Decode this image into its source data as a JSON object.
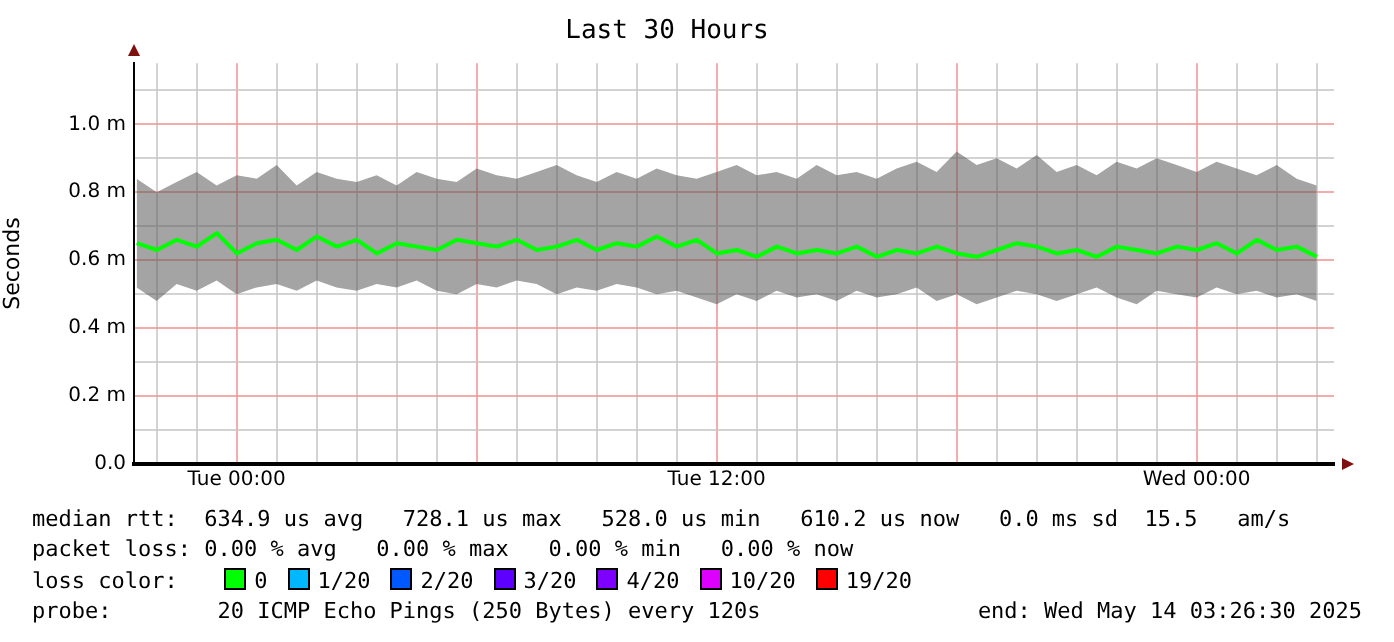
{
  "chart_data": {
    "type": "line",
    "title": "Last 30 Hours",
    "ylabel": "Seconds",
    "legend_title": "loss color:",
    "legend": "bottom",
    "grid": true,
    "marker": "none",
    "line_style": "solid",
    "xlim": [
      "2025-05-12T21:26",
      "2025-05-14T03:26"
    ],
    "xticks": [
      {
        "value": "2025-05-12T22:00",
        "label": null
      },
      {
        "value": "2025-05-12T23:00",
        "label": null
      },
      {
        "value": "2025-05-13T00:00",
        "label": "Tue 00:00"
      },
      {
        "value": "2025-05-13T01:00",
        "label": null
      },
      {
        "value": "2025-05-13T02:00",
        "label": null
      },
      {
        "value": "2025-05-13T03:00",
        "label": null
      },
      {
        "value": "2025-05-13T04:00",
        "label": null
      },
      {
        "value": "2025-05-13T05:00",
        "label": null
      },
      {
        "value": "2025-05-13T06:00",
        "label": null
      },
      {
        "value": "2025-05-13T07:00",
        "label": null
      },
      {
        "value": "2025-05-13T08:00",
        "label": null
      },
      {
        "value": "2025-05-13T09:00",
        "label": null
      },
      {
        "value": "2025-05-13T10:00",
        "label": null
      },
      {
        "value": "2025-05-13T11:00",
        "label": null
      },
      {
        "value": "2025-05-13T12:00",
        "label": "Tue 12:00"
      },
      {
        "value": "2025-05-13T13:00",
        "label": null
      },
      {
        "value": "2025-05-13T14:00",
        "label": null
      },
      {
        "value": "2025-05-13T15:00",
        "label": null
      },
      {
        "value": "2025-05-13T16:00",
        "label": null
      },
      {
        "value": "2025-05-13T17:00",
        "label": null
      },
      {
        "value": "2025-05-13T18:00",
        "label": null
      },
      {
        "value": "2025-05-13T19:00",
        "label": null
      },
      {
        "value": "2025-05-13T20:00",
        "label": null
      },
      {
        "value": "2025-05-13T21:00",
        "label": null
      },
      {
        "value": "2025-05-13T22:00",
        "label": null
      },
      {
        "value": "2025-05-13T23:00",
        "label": null
      },
      {
        "value": "2025-05-14T00:00",
        "label": "Wed 00:00"
      },
      {
        "value": "2025-05-14T01:00",
        "label": null
      },
      {
        "value": "2025-05-14T02:00",
        "label": null
      },
      {
        "value": "2025-05-14T03:00",
        "label": null
      }
    ],
    "ylim": [
      0,
      1.18
    ],
    "yticks": [
      {
        "value": 0,
        "label": "0.0"
      },
      {
        "value": 0.1,
        "label": null
      },
      {
        "value": 0.2,
        "label": "0.2 m"
      },
      {
        "value": 0.3,
        "label": null
      },
      {
        "value": 0.4,
        "label": "0.4 m"
      },
      {
        "value": 0.5,
        "label": null
      },
      {
        "value": 0.6,
        "label": "0.6 m"
      },
      {
        "value": 0.7,
        "label": null
      },
      {
        "value": 0.8,
        "label": "0.8 m"
      },
      {
        "value": 0.9,
        "label": null
      },
      {
        "value": 1.0,
        "label": "1.0 m"
      },
      {
        "value": 1.1,
        "label": null
      }
    ],
    "x": [
      "2025-05-12T21:30",
      "2025-05-12T22:00",
      "2025-05-12T22:30",
      "2025-05-12T23:00",
      "2025-05-12T23:30",
      "2025-05-13T00:00",
      "2025-05-13T00:30",
      "2025-05-13T01:00",
      "2025-05-13T01:30",
      "2025-05-13T02:00",
      "2025-05-13T02:30",
      "2025-05-13T03:00",
      "2025-05-13T03:30",
      "2025-05-13T04:00",
      "2025-05-13T04:30",
      "2025-05-13T05:00",
      "2025-05-13T05:30",
      "2025-05-13T06:00",
      "2025-05-13T06:30",
      "2025-05-13T07:00",
      "2025-05-13T07:30",
      "2025-05-13T08:00",
      "2025-05-13T08:30",
      "2025-05-13T09:00",
      "2025-05-13T09:30",
      "2025-05-13T10:00",
      "2025-05-13T10:30",
      "2025-05-13T11:00",
      "2025-05-13T11:30",
      "2025-05-13T12:00",
      "2025-05-13T12:30",
      "2025-05-13T13:00",
      "2025-05-13T13:30",
      "2025-05-13T14:00",
      "2025-05-13T14:30",
      "2025-05-13T15:00",
      "2025-05-13T15:30",
      "2025-05-13T16:00",
      "2025-05-13T16:30",
      "2025-05-13T17:00",
      "2025-05-13T17:30",
      "2025-05-13T18:00",
      "2025-05-13T18:30",
      "2025-05-13T19:00",
      "2025-05-13T19:30",
      "2025-05-13T20:00",
      "2025-05-13T20:30",
      "2025-05-13T21:00",
      "2025-05-13T21:30",
      "2025-05-13T22:00",
      "2025-05-13T22:30",
      "2025-05-13T23:00",
      "2025-05-13T23:30",
      "2025-05-14T00:00",
      "2025-05-14T00:30",
      "2025-05-14T01:00",
      "2025-05-14T01:30",
      "2025-05-14T02:00",
      "2025-05-14T02:30",
      "2025-05-14T03:00"
    ],
    "series": [
      {
        "name": "0",
        "color": "#00ff00",
        "values": [
          0.65,
          0.63,
          0.66,
          0.64,
          0.68,
          0.62,
          0.65,
          0.66,
          0.63,
          0.67,
          0.64,
          0.66,
          0.62,
          0.65,
          0.64,
          0.63,
          0.66,
          0.65,
          0.64,
          0.66,
          0.63,
          0.64,
          0.66,
          0.63,
          0.65,
          0.64,
          0.67,
          0.64,
          0.66,
          0.62,
          0.63,
          0.61,
          0.64,
          0.62,
          0.63,
          0.62,
          0.64,
          0.61,
          0.63,
          0.62,
          0.64,
          0.62,
          0.61,
          0.63,
          0.65,
          0.64,
          0.62,
          0.63,
          0.61,
          0.64,
          0.63,
          0.62,
          0.64,
          0.63,
          0.65,
          0.62,
          0.66,
          0.63,
          0.64,
          0.61
        ],
        "upper": [
          0.84,
          0.8,
          0.83,
          0.86,
          0.82,
          0.85,
          0.84,
          0.88,
          0.82,
          0.86,
          0.84,
          0.83,
          0.85,
          0.82,
          0.86,
          0.84,
          0.83,
          0.87,
          0.85,
          0.84,
          0.86,
          0.88,
          0.85,
          0.83,
          0.86,
          0.84,
          0.87,
          0.85,
          0.84,
          0.86,
          0.88,
          0.85,
          0.86,
          0.84,
          0.88,
          0.85,
          0.86,
          0.84,
          0.87,
          0.89,
          0.86,
          0.92,
          0.88,
          0.9,
          0.87,
          0.91,
          0.86,
          0.88,
          0.85,
          0.89,
          0.87,
          0.9,
          0.88,
          0.86,
          0.89,
          0.87,
          0.85,
          0.88,
          0.84,
          0.82
        ],
        "lower": [
          0.52,
          0.48,
          0.53,
          0.51,
          0.54,
          0.5,
          0.52,
          0.53,
          0.51,
          0.54,
          0.52,
          0.51,
          0.53,
          0.52,
          0.54,
          0.51,
          0.5,
          0.53,
          0.52,
          0.54,
          0.53,
          0.5,
          0.52,
          0.51,
          0.53,
          0.52,
          0.5,
          0.51,
          0.49,
          0.47,
          0.5,
          0.48,
          0.51,
          0.49,
          0.5,
          0.48,
          0.51,
          0.49,
          0.5,
          0.52,
          0.48,
          0.5,
          0.47,
          0.49,
          0.51,
          0.5,
          0.48,
          0.5,
          0.52,
          0.49,
          0.47,
          0.51,
          0.5,
          0.49,
          0.52,
          0.5,
          0.51,
          0.49,
          0.5,
          0.48
        ]
      },
      {
        "name": "1/20",
        "color": "#00b8ff",
        "values": [
          null,
          null,
          null,
          null,
          null,
          null,
          null,
          null,
          null,
          null,
          null,
          null,
          null,
          null,
          null,
          null,
          null,
          null,
          null,
          null,
          null,
          null,
          null,
          null,
          null,
          null,
          null,
          null,
          null,
          null,
          null,
          null,
          null,
          null,
          null,
          null,
          null,
          null,
          null,
          null,
          null,
          null,
          null,
          null,
          null,
          null,
          null,
          null,
          null,
          null,
          null,
          null,
          null,
          null,
          null,
          null,
          null,
          null,
          null,
          null
        ]
      },
      {
        "name": "2/20",
        "color": "#0059ff",
        "values": [
          null,
          null,
          null,
          null,
          null,
          null,
          null,
          null,
          null,
          null,
          null,
          null,
          null,
          null,
          null,
          null,
          null,
          null,
          null,
          null,
          null,
          null,
          null,
          null,
          null,
          null,
          null,
          null,
          null,
          null,
          null,
          null,
          null,
          null,
          null,
          null,
          null,
          null,
          null,
          null,
          null,
          null,
          null,
          null,
          null,
          null,
          null,
          null,
          null,
          null,
          null,
          null,
          null,
          null,
          null,
          null,
          null,
          null,
          null,
          null
        ]
      },
      {
        "name": "3/20",
        "color": "#5e00ff",
        "values": [
          null,
          null,
          null,
          null,
          null,
          null,
          null,
          null,
          null,
          null,
          null,
          null,
          null,
          null,
          null,
          null,
          null,
          null,
          null,
          null,
          null,
          null,
          null,
          null,
          null,
          null,
          null,
          null,
          null,
          null,
          null,
          null,
          null,
          null,
          null,
          null,
          null,
          null,
          null,
          null,
          null,
          null,
          null,
          null,
          null,
          null,
          null,
          null,
          null,
          null,
          null,
          null,
          null,
          null,
          null,
          null,
          null,
          null,
          null,
          null
        ]
      },
      {
        "name": "4/20",
        "color": "#7e00ff",
        "values": [
          null,
          null,
          null,
          null,
          null,
          null,
          null,
          null,
          null,
          null,
          null,
          null,
          null,
          null,
          null,
          null,
          null,
          null,
          null,
          null,
          null,
          null,
          null,
          null,
          null,
          null,
          null,
          null,
          null,
          null,
          null,
          null,
          null,
          null,
          null,
          null,
          null,
          null,
          null,
          null,
          null,
          null,
          null,
          null,
          null,
          null,
          null,
          null,
          null,
          null,
          null,
          null,
          null,
          null,
          null,
          null,
          null,
          null,
          null,
          null
        ]
      },
      {
        "name": "10/20",
        "color": "#dd00ff",
        "values": [
          null,
          null,
          null,
          null,
          null,
          null,
          null,
          null,
          null,
          null,
          null,
          null,
          null,
          null,
          null,
          null,
          null,
          null,
          null,
          null,
          null,
          null,
          null,
          null,
          null,
          null,
          null,
          null,
          null,
          null,
          null,
          null,
          null,
          null,
          null,
          null,
          null,
          null,
          null,
          null,
          null,
          null,
          null,
          null,
          null,
          null,
          null,
          null,
          null,
          null,
          null,
          null,
          null,
          null,
          null,
          null,
          null,
          null,
          null,
          null
        ]
      },
      {
        "name": "19/20",
        "color": "#ff0000",
        "values": [
          null,
          null,
          null,
          null,
          null,
          null,
          null,
          null,
          null,
          null,
          null,
          null,
          null,
          null,
          null,
          null,
          null,
          null,
          null,
          null,
          null,
          null,
          null,
          null,
          null,
          null,
          null,
          null,
          null,
          null,
          null,
          null,
          null,
          null,
          null,
          null,
          null,
          null,
          null,
          null,
          null,
          null,
          null,
          null,
          null,
          null,
          null,
          null,
          null,
          null,
          null,
          null,
          null,
          null,
          null,
          null,
          null,
          null,
          null,
          null
        ]
      }
    ],
    "annotations": [
      "median rtt:  634.9 us avg   728.1 us max   528.0 us min   610.2 us now   0.0 ms sd  15.5   am/s",
      "packet loss: 0.00 % avg   0.00 % max   0.00 % min   0.00 % now",
      "probe:        20 ICMP Echo Pings (250 Bytes) every 120s",
      "end: Wed May 14 03:26:30 2025"
    ]
  }
}
